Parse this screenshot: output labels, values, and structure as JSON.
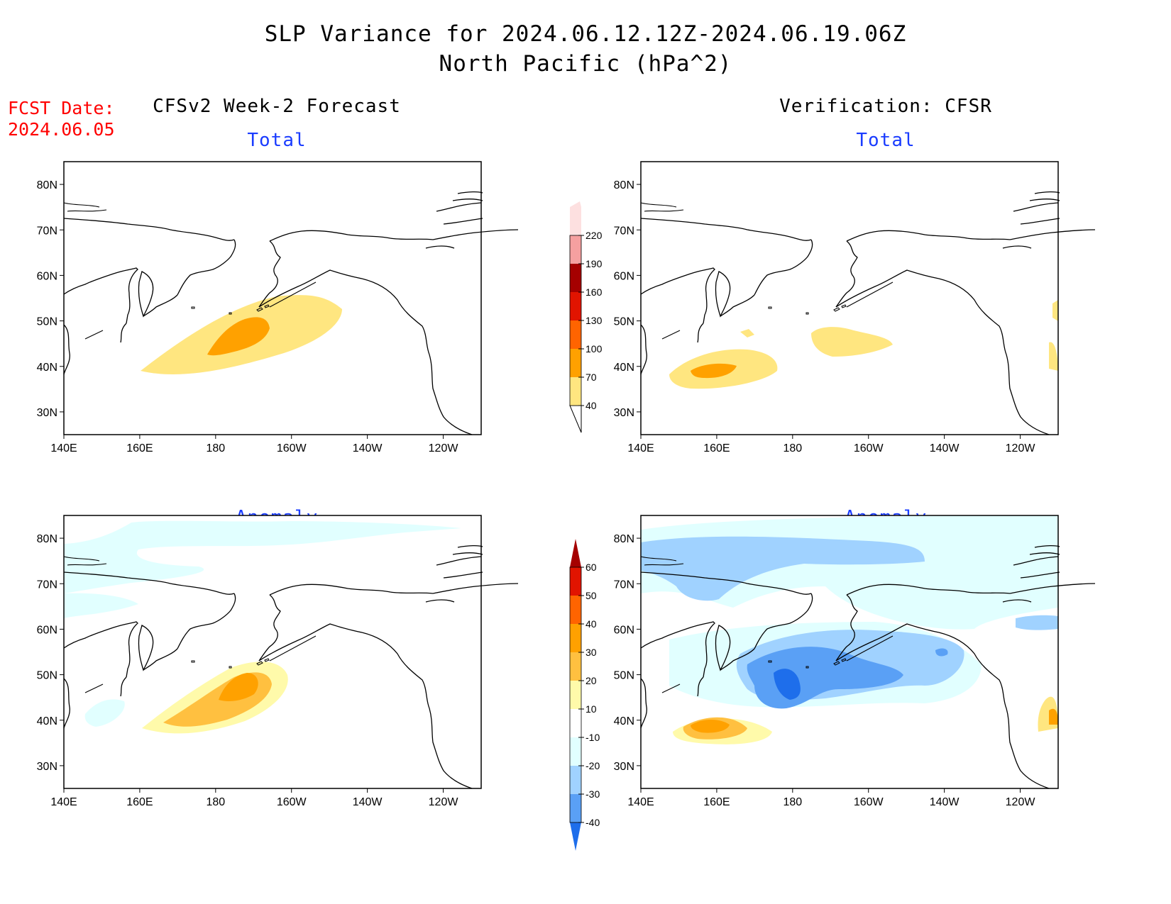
{
  "title": {
    "line1": "SLP Variance for 2024.06.12.12Z-2024.06.19.06Z",
    "line2": "North Pacific (hPa^2)"
  },
  "fcst_date": {
    "label": "FCST Date:",
    "value": "2024.06.05"
  },
  "columns": {
    "forecast": "CFSv2 Week-2 Forecast",
    "verification": "Verification: CFSR"
  },
  "panel_titles": {
    "total": "Total",
    "anomaly": "Anomaly"
  },
  "axes": {
    "lat_labels": [
      "80N",
      "70N",
      "60N",
      "50N",
      "40N",
      "30N"
    ],
    "lat_values": [
      80,
      70,
      60,
      50,
      40,
      30
    ],
    "lon_labels": [
      "140E",
      "160E",
      "180",
      "160W",
      "140W",
      "120W"
    ],
    "lon_values": [
      140,
      160,
      180,
      200,
      220,
      240
    ],
    "lon_range": [
      140,
      250
    ],
    "lat_range": [
      25,
      85
    ]
  },
  "colorbars": {
    "total": {
      "levels": [
        "40",
        "70",
        "100",
        "130",
        "160",
        "190",
        "220"
      ],
      "colors": [
        "#ffe680",
        "#ffa100",
        "#ff6400",
        "#e11400",
        "#a50000",
        "#f5a0a0",
        "#fde0e0"
      ]
    },
    "anomaly": {
      "levels": [
        "60",
        "50",
        "40",
        "30",
        "20",
        "10",
        "-10",
        "-20",
        "-30",
        "-40"
      ],
      "colors_top_to_bottom": [
        "#a50000",
        "#e11400",
        "#ff6400",
        "#ffa100",
        "#ffc040",
        "#fffaaa",
        "#ffffff",
        "#e1ffff",
        "#a0d2ff",
        "#5aa0f5",
        "#1e6eeb"
      ]
    }
  },
  "colors": {
    "title": "#000000",
    "fcst_date": "#ff0000",
    "panel_subtitle": "#1a3cff"
  }
}
